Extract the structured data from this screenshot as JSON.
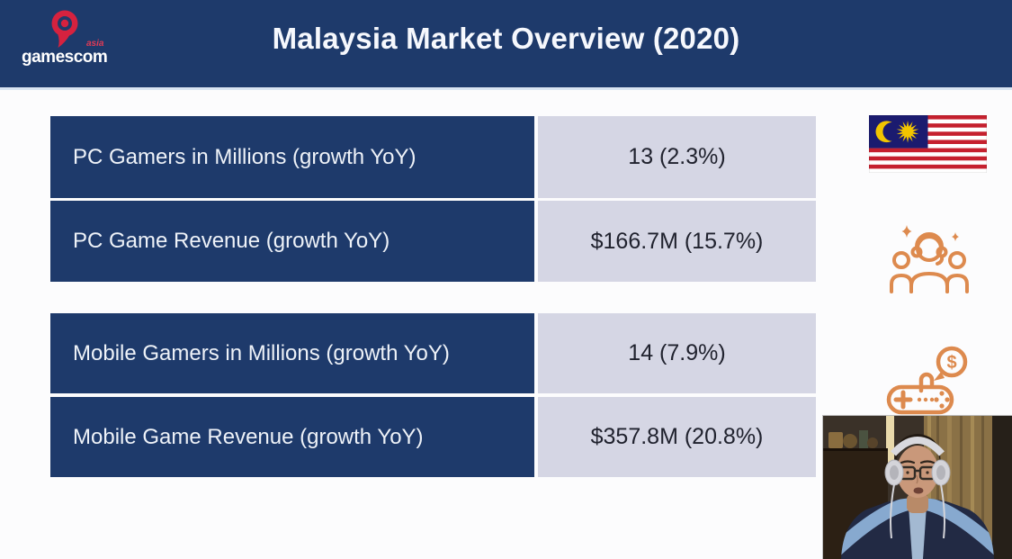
{
  "slide": {
    "title": "Malaysia Market Overview (2020)"
  },
  "logo": {
    "brand": "gamescom",
    "region": "asia"
  },
  "stats_tables": [
    {
      "rows": [
        {
          "label": "PC Gamers in Millions (growth YoY)",
          "value": "13 (2.3%)"
        },
        {
          "label": "PC Game Revenue (growth YoY)",
          "value": "$166.7M (15.7%)"
        }
      ]
    },
    {
      "rows": [
        {
          "label": "Mobile Gamers in Millions (growth YoY)",
          "value": "14 (7.9%)"
        },
        {
          "label": "Mobile Game Revenue (growth YoY)",
          "value": "$357.8M (20.8%)"
        }
      ]
    }
  ],
  "icons": {
    "flag": "malaysia-flag-icon",
    "gamers": "gamers-community-icon",
    "revenue": "controller-money-icon",
    "dollar_symbol": "$"
  },
  "media": {
    "webcam": "presenter-video-feed"
  },
  "colors": {
    "header_navy": "#1e3a6b",
    "label_cell_navy": "#1e3a6b",
    "value_cell_lavender": "#d5d6e4",
    "accent_orange": "#dd8a4e",
    "logo_red": "#d6223f",
    "title_text": "#f6f8fd",
    "value_text": "#20222e"
  }
}
